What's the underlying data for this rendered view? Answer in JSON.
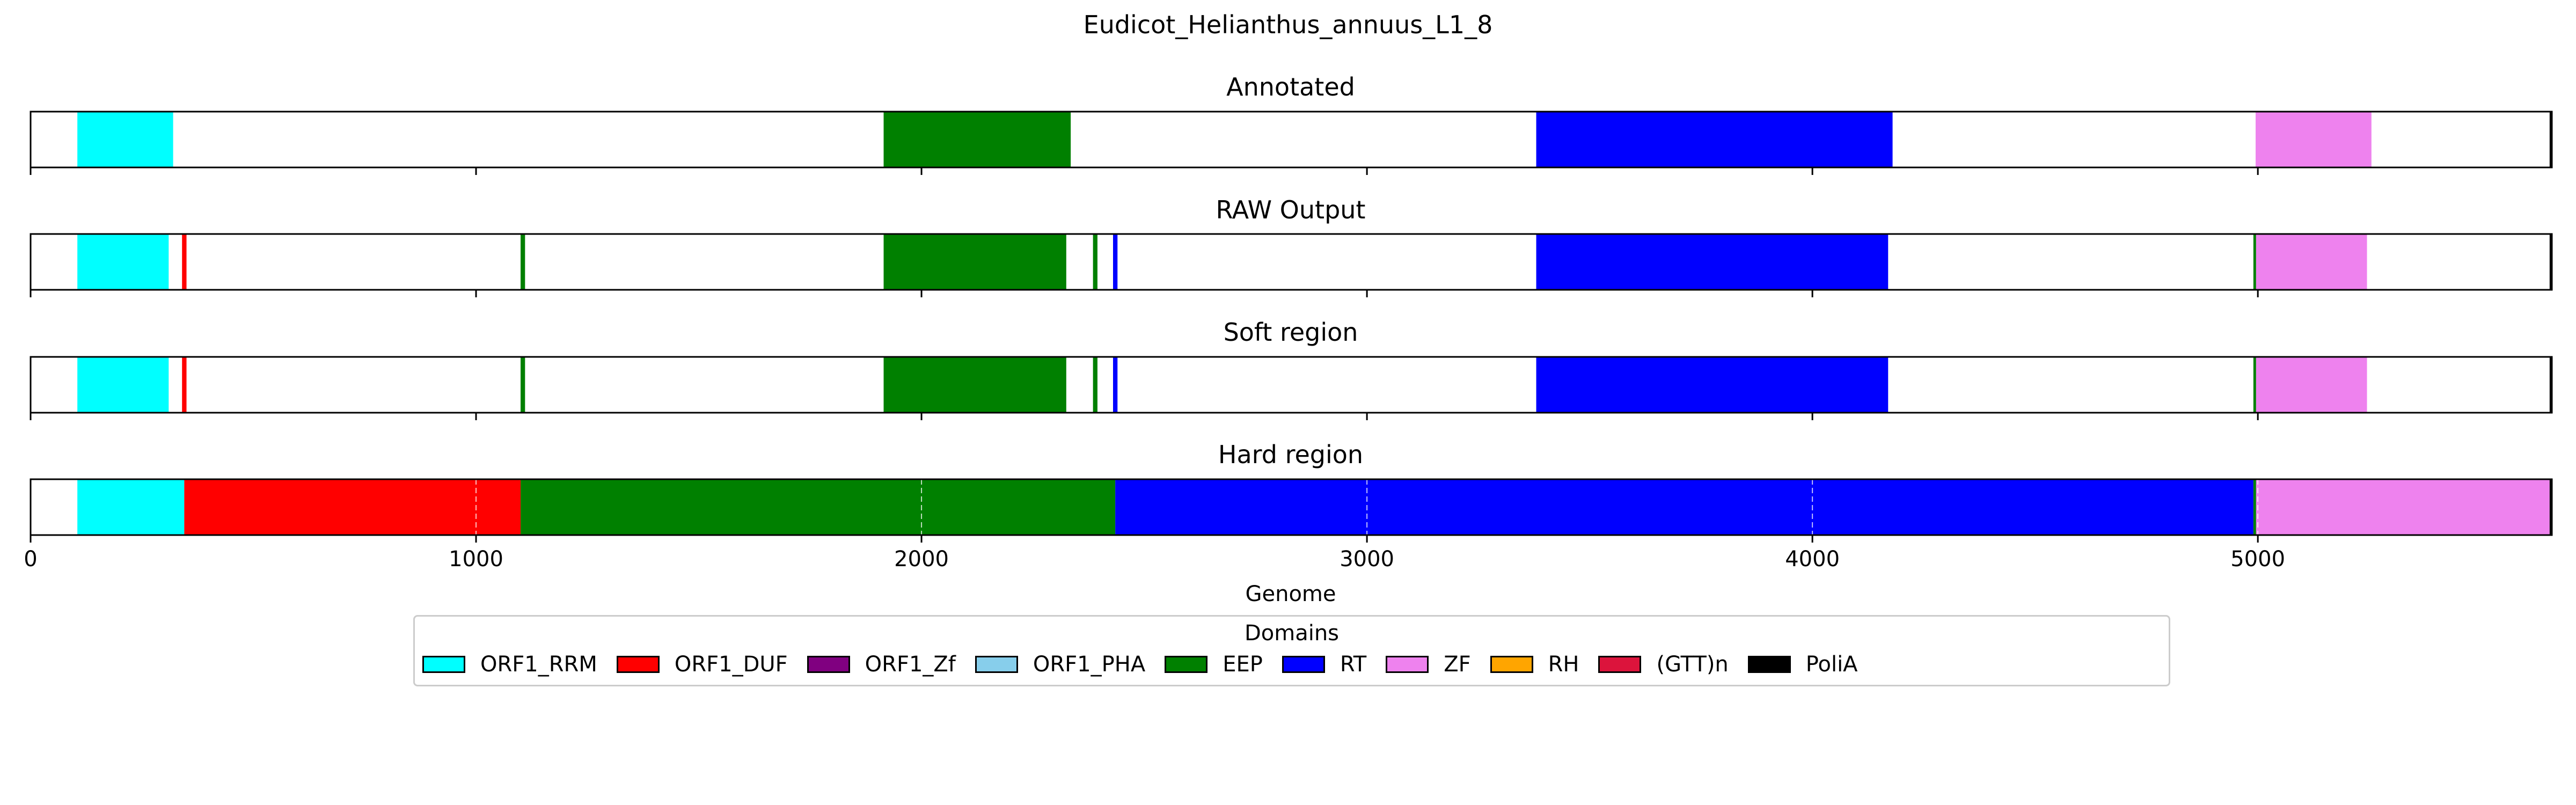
{
  "chart_data": {
    "type": "bar",
    "subtype": "domain-track",
    "title": "Eudicot_Helianthus_annuus_L1_8",
    "xlabel": "Genome",
    "xlim": [
      0,
      5660
    ],
    "xticks": [
      0,
      1000,
      2000,
      3000,
      4000,
      5000
    ],
    "grid": "vertical dashed on bottom track",
    "colors": {
      "ORF1_RRM": "#00ffff",
      "ORF1_DUF": "#ff0000",
      "ORF1_Zf": "#800080",
      "ORF1_PHA": "#87ceeb",
      "EEP": "#008000",
      "RT": "#0000ff",
      "ZF": "#ee82ee",
      "RH": "#ffa500",
      "(GTT)n": "#dc143c",
      "PoliA": "#000000"
    },
    "tracks": [
      {
        "title": "Annotated",
        "segments": [
          {
            "domain": "ORF1_RRM",
            "start": 105,
            "end": 320
          },
          {
            "domain": "EEP",
            "start": 1915,
            "end": 2335
          },
          {
            "domain": "RT",
            "start": 3380,
            "end": 4180
          },
          {
            "domain": "ZF",
            "start": 4995,
            "end": 5255
          },
          {
            "domain": "PoliA",
            "start": 5655,
            "end": 5660
          }
        ]
      },
      {
        "title": "RAW Output",
        "segments": [
          {
            "domain": "ORF1_RRM",
            "start": 105,
            "end": 310
          },
          {
            "domain": "ORF1_DUF",
            "start": 340,
            "end": 350
          },
          {
            "domain": "EEP",
            "start": 1100,
            "end": 1110
          },
          {
            "domain": "EEP",
            "start": 1915,
            "end": 2325
          },
          {
            "domain": "EEP",
            "start": 2385,
            "end": 2395
          },
          {
            "domain": "RT",
            "start": 2430,
            "end": 2440
          },
          {
            "domain": "RT",
            "start": 3380,
            "end": 4170
          },
          {
            "domain": "EEP",
            "start": 4990,
            "end": 4996
          },
          {
            "domain": "ZF",
            "start": 4996,
            "end": 5245
          },
          {
            "domain": "PoliA",
            "start": 5655,
            "end": 5660
          }
        ]
      },
      {
        "title": "Soft region",
        "segments": [
          {
            "domain": "ORF1_RRM",
            "start": 105,
            "end": 310
          },
          {
            "domain": "ORF1_DUF",
            "start": 340,
            "end": 350
          },
          {
            "domain": "EEP",
            "start": 1100,
            "end": 1110
          },
          {
            "domain": "EEP",
            "start": 1915,
            "end": 2325
          },
          {
            "domain": "EEP",
            "start": 2385,
            "end": 2395
          },
          {
            "domain": "RT",
            "start": 2430,
            "end": 2440
          },
          {
            "domain": "RT",
            "start": 3380,
            "end": 4170
          },
          {
            "domain": "EEP",
            "start": 4990,
            "end": 4996
          },
          {
            "domain": "ZF",
            "start": 4996,
            "end": 5245
          },
          {
            "domain": "PoliA",
            "start": 5655,
            "end": 5660
          }
        ]
      },
      {
        "title": "Hard region",
        "segments": [
          {
            "domain": "ORF1_RRM",
            "start": 105,
            "end": 345
          },
          {
            "domain": "ORF1_DUF",
            "start": 345,
            "end": 1100
          },
          {
            "domain": "EEP",
            "start": 1100,
            "end": 2435
          },
          {
            "domain": "RT",
            "start": 2435,
            "end": 4990
          },
          {
            "domain": "EEP",
            "start": 4990,
            "end": 4996
          },
          {
            "domain": "ZF",
            "start": 4996,
            "end": 5655
          },
          {
            "domain": "PoliA",
            "start": 5655,
            "end": 5660
          }
        ]
      }
    ],
    "legend": {
      "title": "Domains",
      "position": "bottom-center",
      "entries": [
        "ORF1_RRM",
        "ORF1_DUF",
        "ORF1_Zf",
        "ORF1_PHA",
        "EEP",
        "RT",
        "ZF",
        "RH",
        "(GTT)n",
        "PoliA"
      ]
    }
  }
}
